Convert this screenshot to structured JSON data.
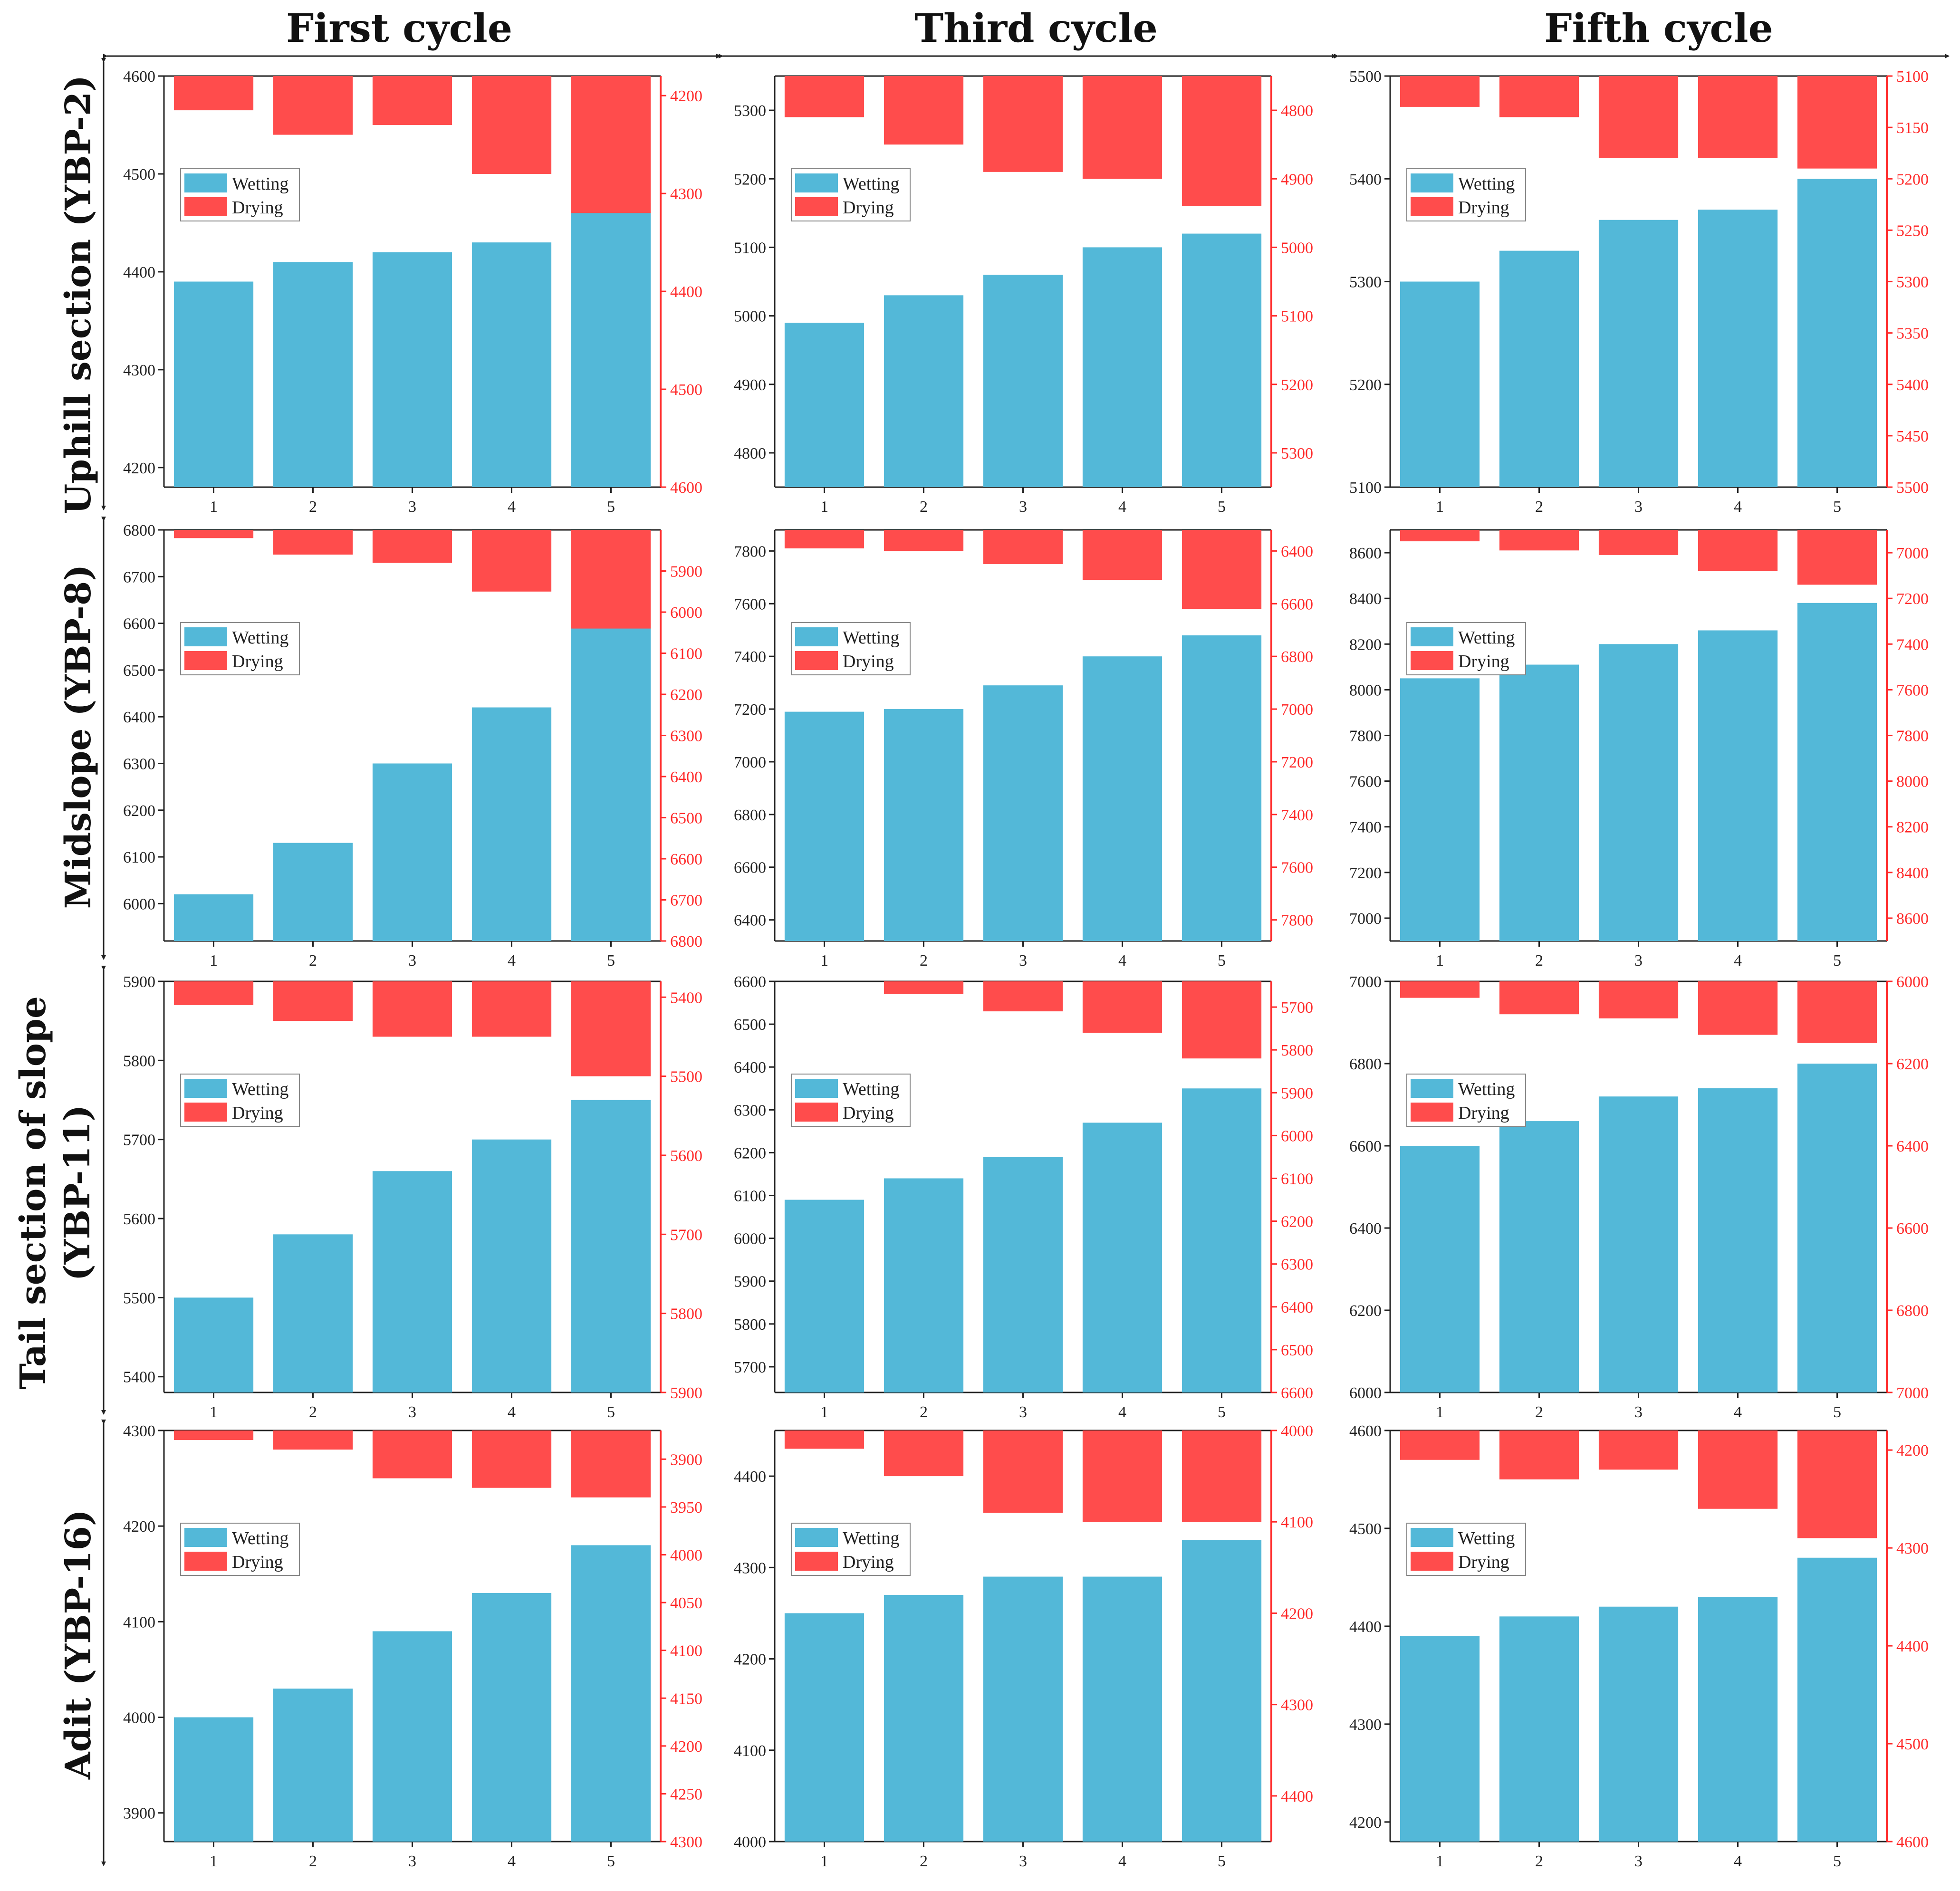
{
  "column_headers": [
    "First cycle",
    "Third cycle",
    "Fifth cycle"
  ],
  "row_headers": [
    [
      "Uphill section (YBP-2)"
    ],
    [
      "Midslope (YBP-8)"
    ],
    [
      "Tail section of slope",
      "(YBP-11)"
    ],
    [
      "Adit (YBP-16)"
    ]
  ],
  "colors": {
    "wetting": "#53b8d8",
    "drying": "#ff4c4c",
    "right_axis": "#ff2a2a",
    "axis": "#222222"
  },
  "chart_data": [
    {
      "type": "bar",
      "row": 0,
      "col": 0,
      "categories": [
        "1",
        "2",
        "3",
        "4",
        "5"
      ],
      "series": [
        {
          "name": "Wetting",
          "axis": "left",
          "values": [
            4390,
            4410,
            4420,
            4430,
            4470
          ]
        },
        {
          "name": "Drying",
          "axis": "right-inverted",
          "values": [
            4215,
            4240,
            4230,
            4280,
            4320
          ]
        }
      ],
      "left_ylim": [
        4180,
        4600
      ],
      "left_ticks": [
        4200,
        4300,
        4400,
        4500,
        4600
      ],
      "right_ylim": [
        4180,
        4600
      ],
      "right_ticks": [
        4200,
        4300,
        4400,
        4500,
        4600
      ]
    },
    {
      "type": "bar",
      "row": 0,
      "col": 1,
      "categories": [
        "1",
        "2",
        "3",
        "4",
        "5"
      ],
      "series": [
        {
          "name": "Wetting",
          "axis": "left",
          "values": [
            4990,
            5030,
            5060,
            5100,
            5120
          ]
        },
        {
          "name": "Drying",
          "axis": "right-inverted",
          "values": [
            4810,
            4850,
            4890,
            4900,
            4940
          ]
        }
      ],
      "left_ylim": [
        4750,
        5350
      ],
      "left_ticks": [
        4800,
        4900,
        5000,
        5100,
        5200,
        5300
      ],
      "right_ylim": [
        4750,
        5350
      ],
      "right_ticks": [
        4800,
        4900,
        5000,
        5100,
        5200,
        5300
      ]
    },
    {
      "type": "bar",
      "row": 0,
      "col": 2,
      "categories": [
        "1",
        "2",
        "3",
        "4",
        "5"
      ],
      "series": [
        {
          "name": "Wetting",
          "axis": "left",
          "values": [
            5300,
            5330,
            5360,
            5370,
            5400
          ]
        },
        {
          "name": "Drying",
          "axis": "right-inverted",
          "values": [
            5130,
            5140,
            5180,
            5180,
            5190
          ]
        }
      ],
      "left_ylim": [
        5100,
        5500
      ],
      "left_ticks": [
        5100,
        5200,
        5300,
        5400,
        5500
      ],
      "right_ylim": [
        5100,
        5500
      ],
      "right_ticks": [
        5100,
        5150,
        5200,
        5250,
        5300,
        5350,
        5400,
        5450,
        5500
      ]
    },
    {
      "type": "bar",
      "row": 1,
      "col": 0,
      "categories": [
        "1",
        "2",
        "3",
        "4",
        "5"
      ],
      "series": [
        {
          "name": "Wetting",
          "axis": "left",
          "values": [
            6020,
            6130,
            6300,
            6420,
            6600
          ]
        },
        {
          "name": "Drying",
          "axis": "right-inverted",
          "values": [
            5820,
            5860,
            5880,
            5950,
            6040
          ]
        }
      ],
      "left_ylim": [
        5920,
        6800
      ],
      "left_ticks": [
        6000,
        6100,
        6200,
        6300,
        6400,
        6500,
        6600,
        6700,
        6800
      ],
      "right_ylim": [
        5800,
        6800
      ],
      "right_ticks": [
        5900,
        6000,
        6100,
        6200,
        6300,
        6400,
        6500,
        6600,
        6700,
        6800
      ]
    },
    {
      "type": "bar",
      "row": 1,
      "col": 1,
      "categories": [
        "1",
        "2",
        "3",
        "4",
        "5"
      ],
      "series": [
        {
          "name": "Wetting",
          "axis": "left",
          "values": [
            7190,
            7200,
            7290,
            7400,
            7480
          ]
        },
        {
          "name": "Drying",
          "axis": "right-inverted",
          "values": [
            6390,
            6400,
            6450,
            6510,
            6620
          ]
        }
      ],
      "left_ylim": [
        6320,
        7880
      ],
      "left_ticks": [
        6400,
        6600,
        6800,
        7000,
        7200,
        7400,
        7600,
        7800
      ],
      "right_ylim": [
        6320,
        7880
      ],
      "right_ticks": [
        6400,
        6600,
        6800,
        7000,
        7200,
        7400,
        7600,
        7800
      ]
    },
    {
      "type": "bar",
      "row": 1,
      "col": 2,
      "categories": [
        "1",
        "2",
        "3",
        "4",
        "5"
      ],
      "series": [
        {
          "name": "Wetting",
          "axis": "left",
          "values": [
            8050,
            8110,
            8200,
            8260,
            8380
          ]
        },
        {
          "name": "Drying",
          "axis": "right-inverted",
          "values": [
            6950,
            6990,
            7010,
            7080,
            7140
          ]
        }
      ],
      "left_ylim": [
        6900,
        8700
      ],
      "left_ticks": [
        7000,
        7200,
        7400,
        7600,
        7800,
        8000,
        8200,
        8400,
        8600
      ],
      "right_ylim": [
        6900,
        8700
      ],
      "right_ticks": [
        7000,
        7200,
        7400,
        7600,
        7800,
        8000,
        8200,
        8400,
        8600
      ]
    },
    {
      "type": "bar",
      "row": 2,
      "col": 0,
      "categories": [
        "1",
        "2",
        "3",
        "4",
        "5"
      ],
      "series": [
        {
          "name": "Wetting",
          "axis": "left",
          "values": [
            5500,
            5580,
            5660,
            5700,
            5750
          ]
        },
        {
          "name": "Drying",
          "axis": "right-inverted",
          "values": [
            5410,
            5430,
            5450,
            5450,
            5500
          ]
        }
      ],
      "left_ylim": [
        5380,
        5900
      ],
      "left_ticks": [
        5400,
        5500,
        5600,
        5700,
        5800,
        5900
      ],
      "right_ylim": [
        5380,
        5900
      ],
      "right_ticks": [
        5400,
        5500,
        5600,
        5700,
        5800,
        5900
      ]
    },
    {
      "type": "bar",
      "row": 2,
      "col": 1,
      "categories": [
        "1",
        "2",
        "3",
        "4",
        "5"
      ],
      "series": [
        {
          "name": "Wetting",
          "axis": "left",
          "values": [
            6090,
            6140,
            6190,
            6270,
            6350
          ]
        },
        {
          "name": "Drying",
          "axis": "right-inverted",
          "values": [
            5640,
            5670,
            5710,
            5760,
            5820
          ]
        }
      ],
      "left_ylim": [
        5640,
        6600
      ],
      "left_ticks": [
        5700,
        5800,
        5900,
        6000,
        6100,
        6200,
        6300,
        6400,
        6500,
        6600
      ],
      "right_ylim": [
        5640,
        6600
      ],
      "right_ticks": [
        5700,
        5800,
        5900,
        6000,
        6100,
        6200,
        6300,
        6400,
        6500,
        6600
      ]
    },
    {
      "type": "bar",
      "row": 2,
      "col": 2,
      "categories": [
        "1",
        "2",
        "3",
        "4",
        "5"
      ],
      "series": [
        {
          "name": "Wetting",
          "axis": "left",
          "values": [
            6600,
            6660,
            6720,
            6740,
            6800
          ]
        },
        {
          "name": "Drying",
          "axis": "right-inverted",
          "values": [
            6040,
            6080,
            6090,
            6130,
            6150
          ]
        }
      ],
      "left_ylim": [
        6000,
        7000
      ],
      "left_ticks": [
        6000,
        6200,
        6400,
        6600,
        6800,
        7000
      ],
      "right_ylim": [
        6000,
        7000
      ],
      "right_ticks": [
        6000,
        6200,
        6400,
        6600,
        6800,
        7000
      ]
    },
    {
      "type": "bar",
      "row": 3,
      "col": 0,
      "categories": [
        "1",
        "2",
        "3",
        "4",
        "5"
      ],
      "series": [
        {
          "name": "Wetting",
          "axis": "left",
          "values": [
            4000,
            4030,
            4090,
            4130,
            4180
          ]
        },
        {
          "name": "Drying",
          "axis": "right-inverted",
          "values": [
            3880,
            3890,
            3920,
            3930,
            3940
          ]
        }
      ],
      "left_ylim": [
        3870,
        4300
      ],
      "left_ticks": [
        3900,
        4000,
        4100,
        4200,
        4300
      ],
      "right_ylim": [
        3870,
        4300
      ],
      "right_ticks": [
        3900,
        3950,
        4000,
        4050,
        4100,
        4150,
        4200,
        4250,
        4300
      ]
    },
    {
      "type": "bar",
      "row": 3,
      "col": 1,
      "categories": [
        "1",
        "2",
        "3",
        "4",
        "5"
      ],
      "series": [
        {
          "name": "Wetting",
          "axis": "left",
          "values": [
            4250,
            4270,
            4290,
            4290,
            4330
          ]
        },
        {
          "name": "Drying",
          "axis": "right-inverted",
          "values": [
            4020,
            4050,
            4090,
            4100,
            4100
          ]
        }
      ],
      "left_ylim": [
        4000,
        4450
      ],
      "left_ticks": [
        4000,
        4100,
        4200,
        4300,
        4400
      ],
      "right_ylim": [
        4000,
        4450
      ],
      "right_ticks": [
        4000,
        4100,
        4200,
        4300,
        4400
      ]
    },
    {
      "type": "bar",
      "row": 3,
      "col": 2,
      "categories": [
        "1",
        "2",
        "3",
        "4",
        "5"
      ],
      "series": [
        {
          "name": "Wetting",
          "axis": "left",
          "values": [
            4390,
            4410,
            4420,
            4430,
            4470
          ]
        },
        {
          "name": "Drying",
          "axis": "right-inverted",
          "values": [
            4210,
            4230,
            4220,
            4260,
            4290
          ]
        }
      ],
      "left_ylim": [
        4180,
        4600
      ],
      "left_ticks": [
        4200,
        4300,
        4400,
        4500,
        4600
      ],
      "right_ylim": [
        4180,
        4600
      ],
      "right_ticks": [
        4200,
        4300,
        4400,
        4500,
        4600
      ]
    }
  ]
}
